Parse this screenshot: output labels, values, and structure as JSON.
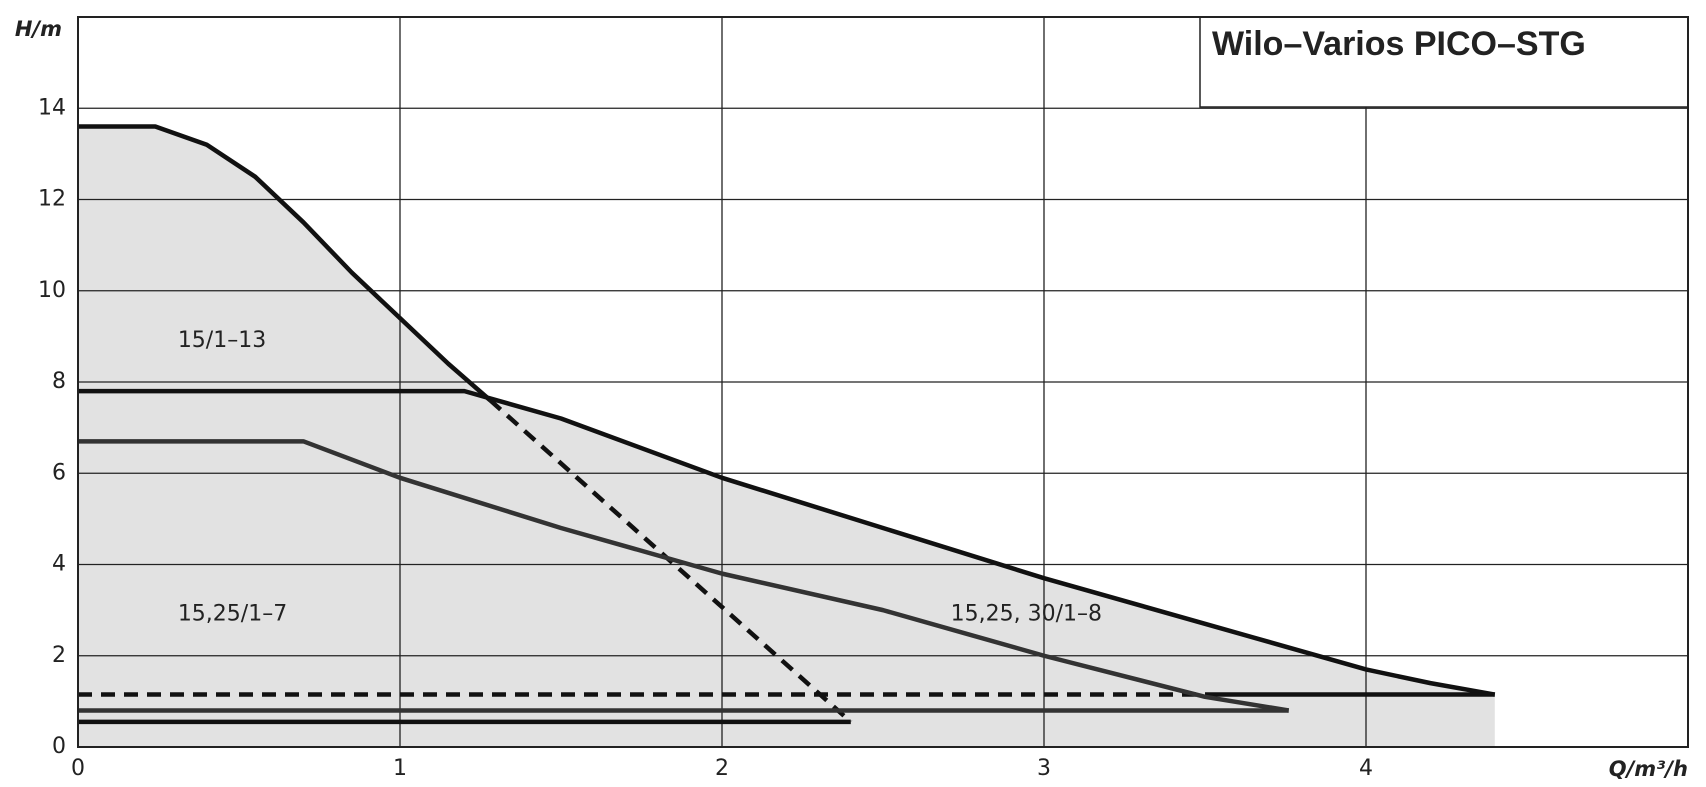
{
  "chart_data": {
    "type": "line",
    "title": "Wilo–Varios PICO–STG",
    "x_label": "Q/m³/h",
    "y_label": "H/m",
    "xlim": [
      0,
      5
    ],
    "ylim": [
      0,
      16
    ],
    "xticks": [
      0,
      1,
      2,
      3,
      4
    ],
    "yticks": [
      0,
      2,
      4,
      6,
      8,
      10,
      12,
      14
    ],
    "grid": true,
    "fill_color": "#e2e2e2",
    "series": [
      {
        "color": "#111111",
        "style": "solid",
        "fill": true,
        "x": [
          0,
          0.24,
          0.4,
          0.55,
          0.7,
          0.85,
          1.0,
          1.15,
          1.28
        ],
        "values": [
          13.6,
          13.6,
          13.2,
          12.5,
          11.5,
          10.4,
          9.4,
          8.4,
          7.6
        ]
      },
      {
        "color": "#111111",
        "style": "dashed",
        "fill": true,
        "x": [
          1.28,
          2.4
        ],
        "values": [
          7.6,
          0.55
        ]
      },
      {
        "color": "#111111",
        "style": "solid",
        "fill": false,
        "x": [
          0,
          2.4
        ],
        "values": [
          0.55,
          0.55
        ]
      },
      {
        "color": "#111111",
        "style": "solid",
        "fill": true,
        "x": [
          0,
          1.2,
          1.5,
          2,
          2.5,
          3,
          3.5,
          4,
          4.2,
          4.4
        ],
        "values": [
          7.8,
          7.8,
          7.2,
          5.9,
          4.8,
          3.7,
          2.7,
          1.7,
          1.4,
          1.15
        ]
      },
      {
        "color": "#111111",
        "style": "dashed",
        "fill": false,
        "x": [
          0,
          3.5
        ],
        "values": [
          1.15,
          1.15
        ]
      },
      {
        "color": "#111111",
        "style": "solid",
        "fill": false,
        "x": [
          3.5,
          4.4
        ],
        "values": [
          1.15,
          1.15
        ]
      },
      {
        "color": "#333333",
        "style": "solid",
        "fill": true,
        "x": [
          0,
          0.7,
          1,
          1.5,
          2,
          2.5,
          3,
          3.5,
          3.76
        ],
        "values": [
          6.7,
          6.7,
          5.9,
          4.8,
          3.8,
          3.0,
          2.0,
          1.1,
          0.8
        ]
      },
      {
        "color": "#333333",
        "style": "solid",
        "fill": false,
        "x": [
          0,
          3.76
        ],
        "values": [
          0.8,
          0.8
        ]
      }
    ],
    "annotations": [
      {
        "text": "15/1–13",
        "x": 0.31,
        "y": 8.9
      },
      {
        "text": "15,25/1–7",
        "x": 0.31,
        "y": 2.9
      },
      {
        "text": "15,25, 30/1–8",
        "x": 2.71,
        "y": 2.9
      }
    ]
  }
}
